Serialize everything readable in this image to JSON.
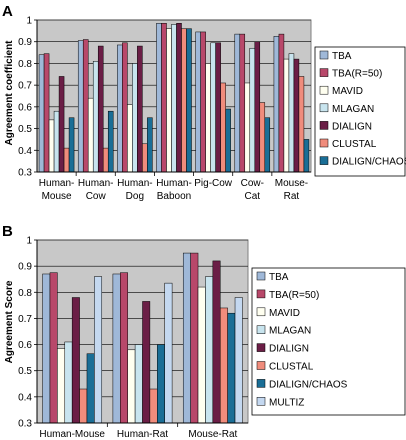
{
  "chart_data": [
    {
      "panel_label": "A",
      "type": "bar",
      "ylabel": "Agreement coefficient",
      "ylim": [
        0.3,
        1.0
      ],
      "yticks": [
        "0.3",
        "0.4",
        "0.5",
        "0.6",
        "0.7",
        "0.8",
        "0.9",
        "1"
      ],
      "grid": true,
      "legend_position": "right",
      "categories": [
        "Human-\nMouse",
        "Human-\nCow",
        "Human-\nDog",
        "Human-\nBaboon",
        "Pig-Cow",
        "Cow-\nCat",
        "Mouse-\nRat"
      ],
      "series": [
        {
          "name": "TBA",
          "color": "#9fb8d8",
          "values": [
            0.84,
            0.905,
            0.885,
            0.985,
            0.945,
            0.935,
            0.925
          ]
        },
        {
          "name": "TBA(R=50)",
          "color": "#b8486a",
          "values": [
            0.845,
            0.91,
            0.895,
            0.985,
            0.945,
            0.935,
            0.935
          ]
        },
        {
          "name": "MAVID",
          "color": "#fffff0",
          "values": [
            0.54,
            0.64,
            0.61,
            0.96,
            0.8,
            0.71,
            0.82
          ]
        },
        {
          "name": "MLAGAN",
          "color": "#c8e4ee",
          "values": [
            0.58,
            0.81,
            0.8,
            0.98,
            0.895,
            0.87,
            0.845
          ]
        },
        {
          "name": "DIALIGN",
          "color": "#6b1e46",
          "values": [
            0.74,
            0.88,
            0.88,
            0.985,
            0.895,
            0.9,
            0.82
          ]
        },
        {
          "name": "CLUSTAL",
          "color": "#f08c7c",
          "values": [
            0.41,
            0.41,
            0.43,
            0.96,
            0.71,
            0.62,
            0.74
          ]
        },
        {
          "name": "DIALIGN/CHAOS",
          "color": "#1a6e96",
          "values": [
            0.55,
            0.58,
            0.55,
            0.96,
            0.59,
            0.55,
            0.45
          ]
        }
      ]
    },
    {
      "panel_label": "B",
      "type": "bar",
      "ylabel": "Agreement Score",
      "ylim": [
        0.3,
        1.0
      ],
      "yticks": [
        "0.3",
        "0.4",
        "0.5",
        "0.6",
        "0.7",
        "0.8",
        "0.9",
        "1"
      ],
      "grid": true,
      "legend_position": "right",
      "categories": [
        "Human-Mouse",
        "Human-Rat",
        "Mouse-Rat"
      ],
      "series": [
        {
          "name": "TBA",
          "color": "#9fb8d8",
          "values": [
            0.87,
            0.87,
            0.95
          ]
        },
        {
          "name": "TBA(R=50)",
          "color": "#b8486a",
          "values": [
            0.875,
            0.875,
            0.95
          ]
        },
        {
          "name": "MAVID",
          "color": "#fffff0",
          "values": [
            0.585,
            0.58,
            0.82
          ]
        },
        {
          "name": "MLAGAN",
          "color": "#c8e4ee",
          "values": [
            0.61,
            0.6,
            0.86
          ]
        },
        {
          "name": "DIALIGN",
          "color": "#6b1e46",
          "values": [
            0.78,
            0.765,
            0.92
          ]
        },
        {
          "name": "CLUSTAL",
          "color": "#f08c7c",
          "values": [
            0.43,
            0.43,
            0.74
          ]
        },
        {
          "name": "DIALIGN/CHAOS",
          "color": "#1a6e96",
          "values": [
            0.565,
            0.6,
            0.72
          ]
        },
        {
          "name": "MULTIZ",
          "color": "#c4d8f0",
          "values": [
            0.86,
            0.835,
            0.78
          ]
        }
      ]
    }
  ]
}
